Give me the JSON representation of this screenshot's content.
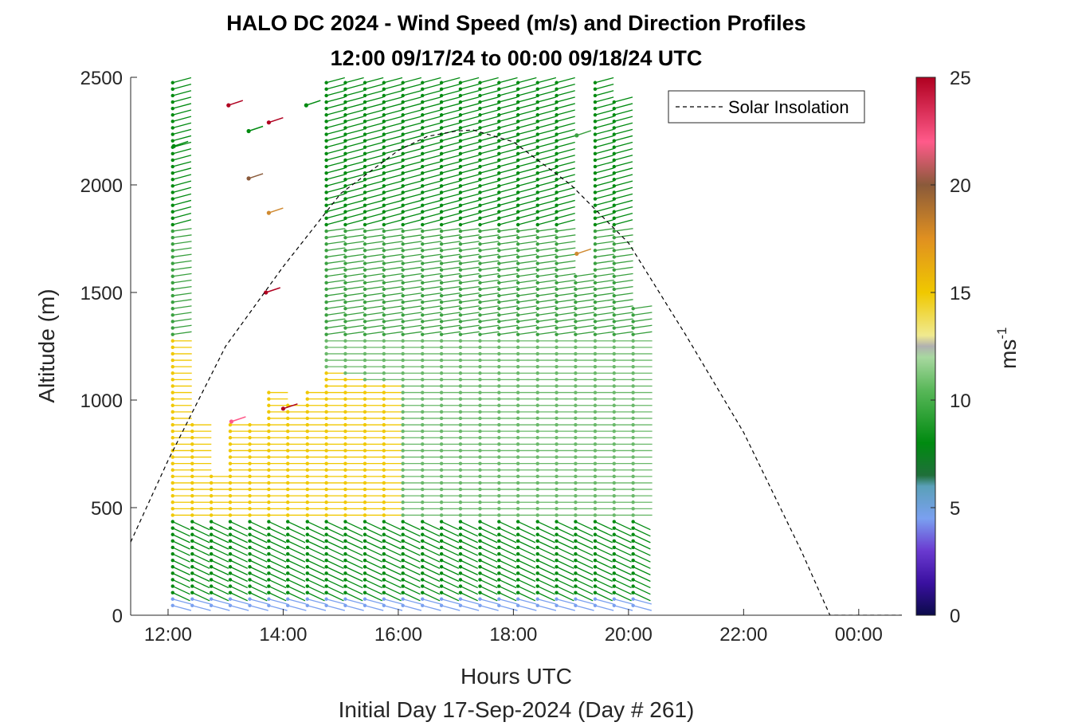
{
  "chart_data": {
    "type": "scatter",
    "title": "HALO DC 2024 - Wind Speed (m/s) and Direction Profiles",
    "subtitle": "12:00 09/17/24 to 00:00 09/18/24  UTC",
    "xlabel": "Hours UTC",
    "ylabel": "Altitude (m)",
    "footer": "Initial Day 17-Sep-2024 (Day # 261)",
    "xlim": [
      11.35,
      24.75
    ],
    "ylim": [
      0,
      2500
    ],
    "x_ticks": [
      12,
      14,
      16,
      18,
      20,
      22,
      24
    ],
    "x_tick_labels": [
      "12:00",
      "14:00",
      "16:00",
      "18:00",
      "20:00",
      "22:00",
      "00:00"
    ],
    "y_ticks": [
      0,
      500,
      1000,
      1500,
      2000,
      2500
    ],
    "y_tick_labels": [
      "0",
      "500",
      "1000",
      "1500",
      "2000",
      "2500"
    ],
    "legend": {
      "position": "top-right",
      "entries": [
        "Solar Insolation"
      ]
    },
    "colorbar": {
      "label": "ms",
      "label_superscript": "-1",
      "range": [
        0,
        25
      ],
      "ticks": [
        0,
        5,
        10,
        15,
        20,
        25
      ],
      "tick_labels": [
        "0",
        "5",
        "10",
        "15",
        "20",
        "25"
      ]
    },
    "profile_times_hours": [
      12.08,
      12.42,
      12.75,
      13.08,
      13.42,
      13.75,
      14.08,
      14.42,
      14.75,
      15.08,
      15.42,
      15.75,
      16.08,
      16.42,
      16.75,
      17.08,
      17.42,
      17.75,
      18.08,
      18.42,
      18.75,
      19.08,
      19.42,
      19.75,
      20.08
    ],
    "profile_top_altitudes_m": [
      2480,
      900,
      650,
      900,
      900,
      1050,
      1000,
      1050,
      2500,
      2500,
      2500,
      2500,
      2500,
      2500,
      2500,
      2500,
      2500,
      2500,
      2500,
      2500,
      2500,
      1600,
      2480,
      2400,
      1450
    ],
    "altitude_step_m": 30,
    "wind_barb_summary": [
      {
        "altitude_range_m": [
          0,
          100
        ],
        "speed_ms": 5,
        "direction": "from WSW"
      },
      {
        "altitude_range_m": [
          100,
          450
        ],
        "speed_ms": 8,
        "direction": "from SW"
      },
      {
        "altitude_range_m": [
          450,
          900
        ],
        "speed_ms": 11,
        "direction": "from W"
      },
      {
        "altitude_range_m": [
          900,
          1300
        ],
        "speed_ms": 11,
        "direction": "from W"
      },
      {
        "altitude_range_m": [
          1300,
          1800
        ],
        "speed_ms": 9,
        "direction": "from WNW"
      },
      {
        "altitude_range_m": [
          1800,
          2500
        ],
        "speed_ms": 8,
        "direction": "from NW"
      }
    ],
    "low_level_jet": {
      "altitude_range_m": [
        450,
        1300
      ],
      "time_range_hours": [
        12.0,
        15.8
      ],
      "speed_ms": 14
    },
    "isolated_barbs": [
      {
        "x": 13.05,
        "y": 2370,
        "speed_ms": 24
      },
      {
        "x": 13.4,
        "y": 2250,
        "speed_ms": 7
      },
      {
        "x": 13.75,
        "y": 2290,
        "speed_ms": 24
      },
      {
        "x": 14.4,
        "y": 2370,
        "speed_ms": 8
      },
      {
        "x": 13.4,
        "y": 2030,
        "speed_ms": 19
      },
      {
        "x": 13.75,
        "y": 1870,
        "speed_ms": 18
      },
      {
        "x": 13.7,
        "y": 1500,
        "speed_ms": 24
      },
      {
        "x": 14.0,
        "y": 960,
        "speed_ms": 24
      },
      {
        "x": 13.1,
        "y": 900,
        "speed_ms": 22
      },
      {
        "x": 19.1,
        "y": 1680,
        "speed_ms": 17
      },
      {
        "x": 19.1,
        "y": 2230,
        "speed_ms": 9
      },
      {
        "x": 12.1,
        "y": 2180,
        "speed_ms": 7
      }
    ],
    "solar_insolation": {
      "name": "Solar Insolation",
      "x": [
        11.35,
        12.0,
        13.0,
        14.0,
        15.0,
        16.0,
        16.5,
        17.0,
        17.3,
        18.0,
        19.0,
        20.0,
        21.0,
        22.0,
        23.0,
        23.5,
        24.75
      ],
      "y": [
        340,
        720,
        1250,
        1620,
        1960,
        2160,
        2225,
        2250,
        2255,
        2200,
        2000,
        1730,
        1300,
        850,
        300,
        0,
        0
      ]
    }
  }
}
